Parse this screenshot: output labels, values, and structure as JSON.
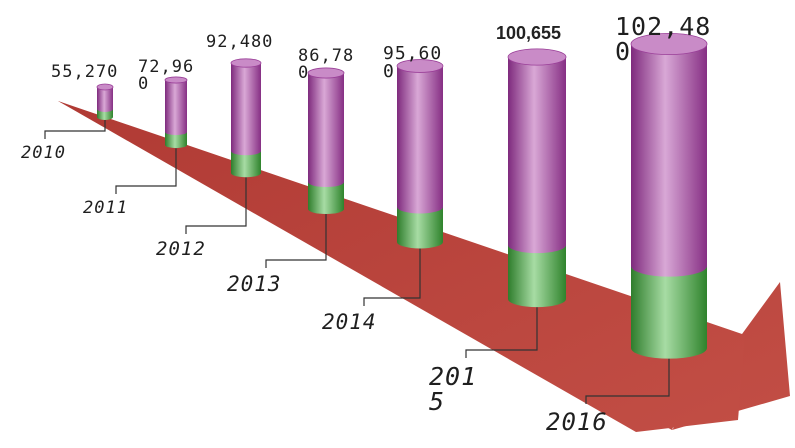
{
  "chart_data": {
    "type": "bar",
    "style": "3d-cylinder-on-arrow",
    "categories": [
      "2010",
      "2011",
      "2012",
      "2013",
      "2014",
      "2015",
      "2016"
    ],
    "values": [
      55270,
      72960,
      92480,
      86780,
      95600,
      100655,
      102480
    ],
    "value_labels": [
      "55,270",
      "72,960",
      "92,480",
      "86,780",
      "95,600",
      "100,655",
      "102,480"
    ],
    "title": "",
    "xlabel": "",
    "ylabel": "",
    "legend": "none",
    "grid": false,
    "colors": {
      "cylinder_top": "#a0449e",
      "cylinder_base": "#3f9a3a",
      "arrow": "#b8413a"
    }
  }
}
